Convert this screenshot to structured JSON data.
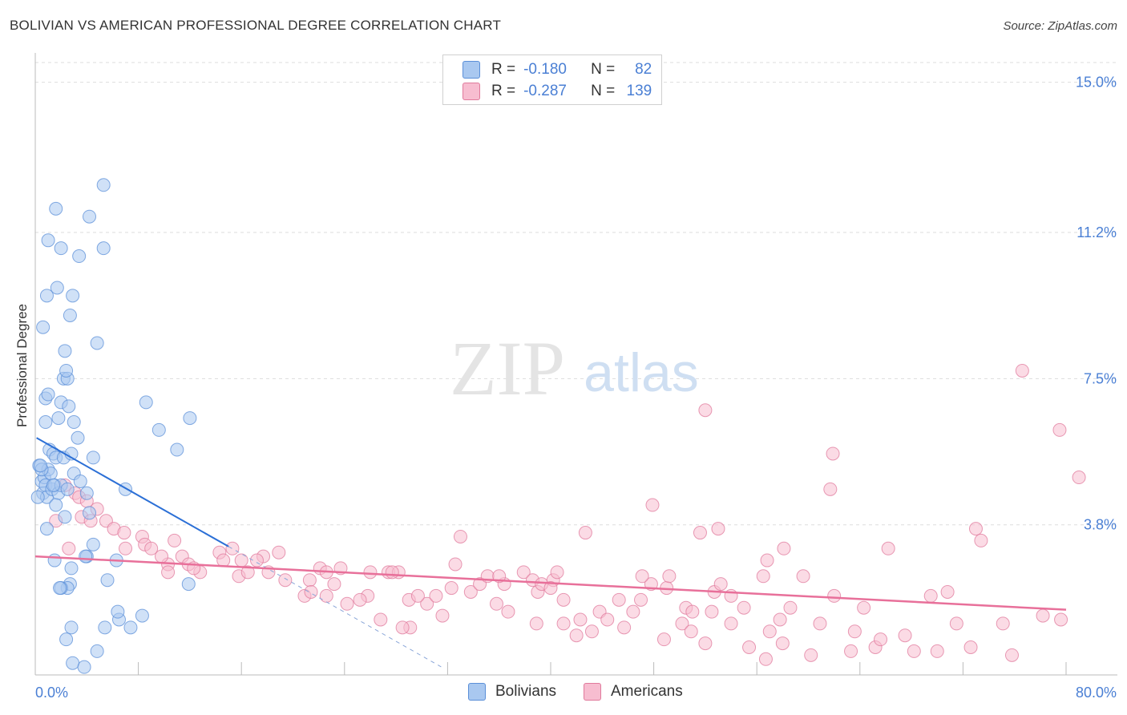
{
  "title": "BOLIVIAN VS AMERICAN PROFESSIONAL DEGREE CORRELATION CHART",
  "source": "Source: ZipAtlas.com",
  "watermark": {
    "zip": "ZIP",
    "atlas": "atlas"
  },
  "legend": {
    "r_label": "R =",
    "n_label": "N =",
    "items": [
      {
        "name": "Bolivians",
        "r": "-0.180",
        "n": "82",
        "fill": "#a9c8f0",
        "stroke": "#5b8fd8"
      },
      {
        "name": "Americans",
        "r": "-0.287",
        "n": "139",
        "fill": "#f7bdd0",
        "stroke": "#e07a9c"
      }
    ]
  },
  "colors": {
    "blue_line": "#2b6fd6",
    "pink_line": "#e8709a",
    "axis_text": "#4a7fd4",
    "grid": "#dddddd"
  },
  "chart_data": {
    "type": "scatter",
    "title": "BOLIVIAN VS AMERICAN PROFESSIONAL DEGREE CORRELATION CHART",
    "xlabel": "",
    "ylabel": "Professional Degree",
    "xlim": [
      0,
      80
    ],
    "ylim": [
      0,
      15.5
    ],
    "x_tick_labels": [
      "0.0%",
      "80.0%"
    ],
    "y_ticks": [
      3.8,
      7.5,
      11.2,
      15.0
    ],
    "y_tick_labels": [
      "3.8%",
      "7.5%",
      "11.2%",
      "15.0%"
    ],
    "series": [
      {
        "name": "Bolivians",
        "trend": {
          "x0": 0.1,
          "y0": 6.0,
          "x1": 15.0,
          "y1": 3.25,
          "dash_to_x": 31.5
        },
        "points": [
          [
            0.3,
            5.3
          ],
          [
            0.5,
            4.9
          ],
          [
            0.6,
            4.6
          ],
          [
            0.7,
            5.0
          ],
          [
            0.8,
            4.8
          ],
          [
            0.9,
            4.5
          ],
          [
            1.0,
            5.2
          ],
          [
            1.2,
            5.1
          ],
          [
            1.3,
            4.7
          ],
          [
            0.5,
            5.2
          ],
          [
            1.5,
            4.8
          ],
          [
            1.8,
            4.6
          ],
          [
            2.0,
            4.8
          ],
          [
            2.5,
            4.7
          ],
          [
            0.4,
            5.3
          ],
          [
            1.1,
            5.7
          ],
          [
            1.4,
            5.6
          ],
          [
            1.6,
            5.5
          ],
          [
            2.2,
            5.5
          ],
          [
            2.8,
            5.6
          ],
          [
            0.8,
            6.4
          ],
          [
            1.8,
            6.5
          ],
          [
            3.0,
            6.4
          ],
          [
            2.0,
            6.9
          ],
          [
            2.6,
            6.8
          ],
          [
            0.8,
            7.0
          ],
          [
            1.0,
            7.1
          ],
          [
            2.2,
            7.5
          ],
          [
            2.5,
            7.5
          ],
          [
            2.4,
            7.7
          ],
          [
            3.3,
            6.0
          ],
          [
            4.5,
            5.5
          ],
          [
            3.0,
            5.1
          ],
          [
            3.5,
            4.9
          ],
          [
            4.0,
            4.6
          ],
          [
            4.2,
            4.1
          ],
          [
            2.3,
            4.0
          ],
          [
            0.6,
            8.8
          ],
          [
            2.3,
            8.2
          ],
          [
            4.8,
            8.4
          ],
          [
            0.9,
            9.6
          ],
          [
            1.7,
            9.8
          ],
          [
            2.9,
            9.6
          ],
          [
            2.7,
            9.1
          ],
          [
            1.0,
            11.0
          ],
          [
            2.0,
            10.8
          ],
          [
            3.4,
            10.6
          ],
          [
            5.3,
            10.8
          ],
          [
            1.6,
            11.8
          ],
          [
            4.2,
            11.6
          ],
          [
            5.3,
            12.4
          ],
          [
            8.6,
            6.9
          ],
          [
            9.6,
            6.2
          ],
          [
            11.0,
            5.7
          ],
          [
            12.0,
            6.5
          ],
          [
            7.0,
            4.7
          ],
          [
            4.5,
            3.3
          ],
          [
            4.0,
            3.0
          ],
          [
            6.3,
            2.9
          ],
          [
            3.9,
            3.0
          ],
          [
            1.5,
            2.9
          ],
          [
            2.8,
            2.7
          ],
          [
            2.7,
            2.3
          ],
          [
            2.5,
            2.2
          ],
          [
            5.6,
            2.4
          ],
          [
            2.0,
            2.2
          ],
          [
            1.9,
            2.2
          ],
          [
            11.9,
            2.3
          ],
          [
            6.5,
            1.4
          ],
          [
            8.3,
            1.5
          ],
          [
            6.4,
            1.6
          ],
          [
            5.4,
            1.2
          ],
          [
            7.4,
            1.2
          ],
          [
            2.8,
            1.2
          ],
          [
            2.4,
            0.9
          ],
          [
            4.8,
            0.6
          ],
          [
            2.9,
            0.3
          ],
          [
            3.8,
            0.2
          ],
          [
            0.2,
            4.5
          ],
          [
            1.4,
            4.8
          ],
          [
            0.9,
            3.7
          ],
          [
            1.6,
            4.3
          ]
        ]
      },
      {
        "name": "Americans",
        "trend": {
          "x0": 0.0,
          "y0": 3.0,
          "x1": 80.0,
          "y1": 1.65
        },
        "points": [
          [
            2.3,
            4.8
          ],
          [
            3.1,
            4.6
          ],
          [
            3.4,
            4.5
          ],
          [
            4.0,
            4.4
          ],
          [
            4.8,
            4.2
          ],
          [
            1.6,
            3.9
          ],
          [
            3.6,
            4.0
          ],
          [
            5.5,
            3.9
          ],
          [
            6.1,
            3.7
          ],
          [
            6.9,
            3.6
          ],
          [
            8.3,
            3.5
          ],
          [
            8.5,
            3.3
          ],
          [
            10.8,
            3.4
          ],
          [
            9.0,
            3.2
          ],
          [
            7.0,
            3.2
          ],
          [
            10.3,
            2.8
          ],
          [
            9.8,
            3.0
          ],
          [
            11.4,
            3.0
          ],
          [
            11.9,
            2.8
          ],
          [
            12.8,
            2.6
          ],
          [
            14.3,
            3.1
          ],
          [
            15.3,
            3.2
          ],
          [
            17.7,
            3.0
          ],
          [
            18.9,
            3.1
          ],
          [
            17.2,
            2.9
          ],
          [
            16.0,
            2.9
          ],
          [
            18.1,
            2.6
          ],
          [
            10.3,
            2.6
          ],
          [
            12.3,
            2.7
          ],
          [
            14.6,
            2.9
          ],
          [
            15.8,
            2.5
          ],
          [
            16.5,
            2.6
          ],
          [
            19.4,
            2.4
          ],
          [
            21.3,
            2.4
          ],
          [
            22.1,
            2.7
          ],
          [
            22.6,
            2.6
          ],
          [
            23.2,
            2.3
          ],
          [
            23.7,
            2.7
          ],
          [
            20.9,
            2.0
          ],
          [
            21.4,
            2.1
          ],
          [
            22.6,
            2.0
          ],
          [
            26.0,
            2.6
          ],
          [
            27.4,
            2.6
          ],
          [
            28.2,
            2.6
          ],
          [
            27.7,
            2.6
          ],
          [
            25.8,
            2.0
          ],
          [
            25.2,
            1.9
          ],
          [
            24.2,
            1.8
          ],
          [
            29.0,
            1.9
          ],
          [
            30.4,
            1.8
          ],
          [
            29.7,
            2.0
          ],
          [
            31.1,
            2.0
          ],
          [
            32.3,
            2.2
          ],
          [
            32.6,
            2.8
          ],
          [
            33.8,
            2.1
          ],
          [
            34.5,
            2.3
          ],
          [
            35.1,
            2.5
          ],
          [
            36.4,
            2.3
          ],
          [
            36.0,
            2.5
          ],
          [
            37.9,
            2.6
          ],
          [
            38.6,
            2.4
          ],
          [
            39.0,
            2.1
          ],
          [
            39.3,
            2.3
          ],
          [
            40.2,
            2.4
          ],
          [
            41.0,
            1.9
          ],
          [
            42.7,
            3.6
          ],
          [
            40.0,
            2.2
          ],
          [
            33.0,
            3.5
          ],
          [
            40.5,
            2.6
          ],
          [
            31.6,
            1.5
          ],
          [
            35.8,
            1.8
          ],
          [
            36.7,
            1.6
          ],
          [
            29.1,
            1.2
          ],
          [
            26.8,
            1.4
          ],
          [
            28.5,
            1.2
          ],
          [
            38.9,
            1.3
          ],
          [
            41.0,
            1.3
          ],
          [
            42.3,
            1.4
          ],
          [
            43.8,
            1.6
          ],
          [
            44.4,
            1.4
          ],
          [
            43.2,
            1.1
          ],
          [
            42.0,
            1.0
          ],
          [
            45.3,
            1.9
          ],
          [
            46.4,
            1.6
          ],
          [
            47.0,
            1.9
          ],
          [
            45.7,
            1.2
          ],
          [
            47.8,
            2.3
          ],
          [
            47.1,
            2.5
          ],
          [
            49.0,
            2.2
          ],
          [
            49.2,
            2.5
          ],
          [
            50.5,
            1.7
          ],
          [
            51.0,
            1.6
          ],
          [
            50.2,
            1.3
          ],
          [
            48.8,
            0.9
          ],
          [
            52.7,
            2.1
          ],
          [
            53.2,
            2.3
          ],
          [
            54.0,
            2.0
          ],
          [
            55.0,
            1.7
          ],
          [
            54.0,
            1.3
          ],
          [
            52.5,
            1.6
          ],
          [
            50.9,
            1.1
          ],
          [
            52.0,
            0.8
          ],
          [
            56.5,
            2.5
          ],
          [
            57.0,
            1.1
          ],
          [
            57.8,
            1.4
          ],
          [
            58.6,
            1.7
          ],
          [
            59.6,
            2.5
          ],
          [
            60.2,
            0.5
          ],
          [
            58.0,
            0.8
          ],
          [
            55.4,
            0.7
          ],
          [
            56.7,
            0.4
          ],
          [
            58.1,
            3.2
          ],
          [
            60.9,
            1.3
          ],
          [
            62.0,
            2.0
          ],
          [
            63.6,
            1.1
          ],
          [
            64.3,
            1.7
          ],
          [
            65.2,
            0.7
          ],
          [
            63.3,
            0.6
          ],
          [
            65.6,
            0.9
          ],
          [
            66.2,
            3.2
          ],
          [
            67.5,
            1.0
          ],
          [
            68.2,
            0.6
          ],
          [
            69.5,
            2.0
          ],
          [
            70.0,
            0.6
          ],
          [
            70.8,
            2.1
          ],
          [
            71.5,
            1.3
          ],
          [
            72.6,
            0.7
          ],
          [
            75.1,
            1.3
          ],
          [
            75.8,
            0.5
          ],
          [
            78.2,
            1.5
          ],
          [
            79.6,
            1.4
          ],
          [
            51.6,
            3.6
          ],
          [
            53.0,
            3.7
          ],
          [
            47.9,
            4.3
          ],
          [
            52.0,
            6.7
          ],
          [
            61.7,
            4.7
          ],
          [
            61.9,
            5.6
          ],
          [
            73.0,
            3.7
          ],
          [
            81.0,
            5.0
          ],
          [
            79.5,
            6.2
          ],
          [
            76.6,
            7.7
          ],
          [
            73.4,
            3.4
          ],
          [
            56.8,
            2.9
          ],
          [
            2.6,
            3.2
          ],
          [
            4.3,
            3.9
          ]
        ]
      }
    ]
  }
}
